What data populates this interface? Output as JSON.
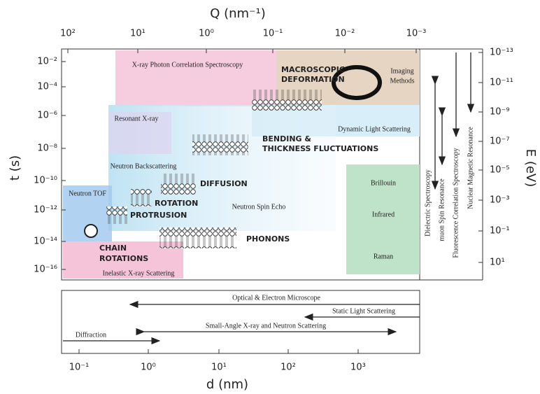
{
  "q_axis": {
    "title": "Q (nm⁻¹)",
    "ticks": [
      "10²",
      "10¹",
      "10⁰",
      "10⁻¹",
      "10⁻²",
      "10⁻³"
    ]
  },
  "t_axis": {
    "title": "t (s)",
    "ticks": [
      "10⁻²",
      "10⁻⁴",
      "10⁻⁶",
      "10⁻⁸",
      "10⁻¹⁰",
      "10⁻¹²",
      "10⁻¹⁴",
      "10⁻¹⁶"
    ]
  },
  "e_axis": {
    "title": "E (eV)",
    "ticks": [
      "10⁻¹³",
      "10⁻¹¹",
      "10⁻⁹",
      "10⁻⁷",
      "10⁻⁵",
      "10⁻³",
      "10⁻¹",
      "10¹"
    ]
  },
  "d_axis": {
    "title": "d (nm)",
    "ticks": [
      "10⁻¹",
      "10⁰",
      "10¹",
      "10²",
      "10³"
    ]
  },
  "regions": [
    "X-ray Photon Correlation Spectroscopy",
    "Imaging",
    "Methods",
    "Resonant X-ray",
    "Dynamic Light Scattering",
    "Neutron Backscattering",
    "Neutron TOF",
    "Neutron Spin Echo",
    "Inelastic X-ray Scattering",
    "Brillouin",
    "Infrared",
    "Raman"
  ],
  "processes": [
    "MACROSCOPIC",
    "DEFORMATION",
    "BENDING &",
    "THICKNESS FLUCTUATIONS",
    "DIFFUSION",
    "ROTATION",
    "PROTRUSION",
    "CHAIN",
    "ROTATIONS",
    "PHONONS"
  ],
  "techniques": [
    "Dielectric Spectroscopy",
    "muon Spin Resonance",
    "Fluorescence Correlation Spectroscopy",
    "Nuclear Magnetic Resonance",
    "Optical & Electron Microscope",
    "Static Light Scattering",
    "Small-Angle X-ray and Neutron Scattering",
    "Diffraction"
  ]
}
